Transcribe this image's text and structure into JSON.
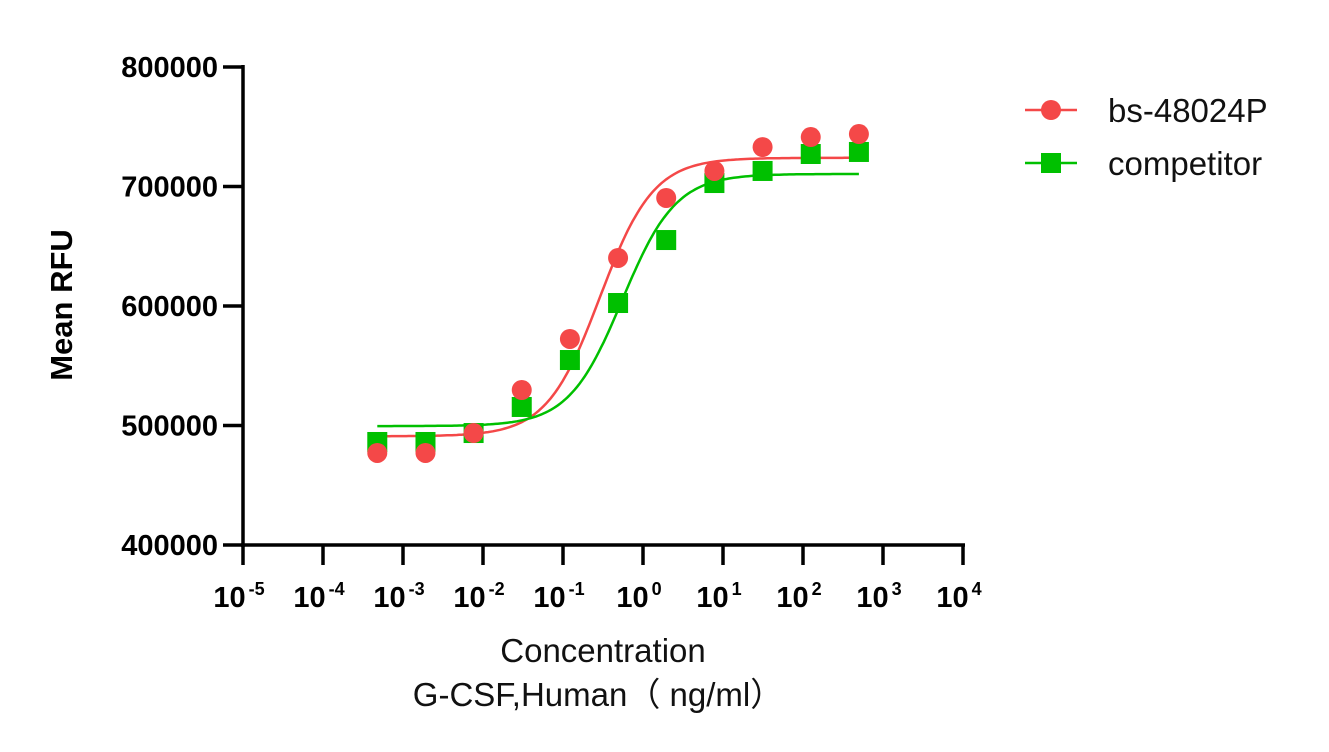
{
  "chart_data": {
    "type": "scatter",
    "title": "",
    "xlabel": [
      "Concentration",
      "G-CSF,Human（ ng/ml）"
    ],
    "ylabel": "Mean RFU",
    "xscale": "log",
    "xlim": [
      1e-05,
      10000
    ],
    "ylim": [
      400000,
      800000
    ],
    "x_ticks": [
      {
        "base": "10",
        "exp": "-5"
      },
      {
        "base": "10",
        "exp": "-4"
      },
      {
        "base": "10",
        "exp": "-3"
      },
      {
        "base": "10",
        "exp": "-2"
      },
      {
        "base": "10",
        "exp": "-1"
      },
      {
        "base": "10",
        "exp": "0"
      },
      {
        "base": "10",
        "exp": "1"
      },
      {
        "base": "10",
        "exp": "2"
      },
      {
        "base": "10",
        "exp": "3"
      },
      {
        "base": "10",
        "exp": "4"
      }
    ],
    "y_ticks": [
      "400000",
      "500000",
      "600000",
      "700000",
      "800000"
    ],
    "grid": false,
    "legend_position": "top-right",
    "x": [
      0.000477,
      0.00191,
      0.00763,
      0.0305,
      0.122,
      0.488,
      1.95,
      7.81,
      31.25,
      125,
      500
    ],
    "series": [
      {
        "name": "bs-48024P",
        "marker": "circle",
        "color": "#f44848",
        "values": [
          477000,
          477000,
          493700,
          529700,
          572400,
          640200,
          690400,
          713000,
          733000,
          741400,
          743900
        ],
        "fit": {
          "bottom": 491000,
          "top": 724000,
          "ec50": 0.29,
          "hill": 1.3
        }
      },
      {
        "name": "competitor",
        "marker": "square",
        "color": "#00c000",
        "values": [
          486200,
          486200,
          493700,
          515500,
          554800,
          602500,
          655200,
          702900,
          713000,
          727200,
          728900
        ],
        "fit": {
          "bottom": 499500,
          "top": 710500,
          "ec50": 0.55,
          "hill": 1.3
        }
      }
    ]
  }
}
